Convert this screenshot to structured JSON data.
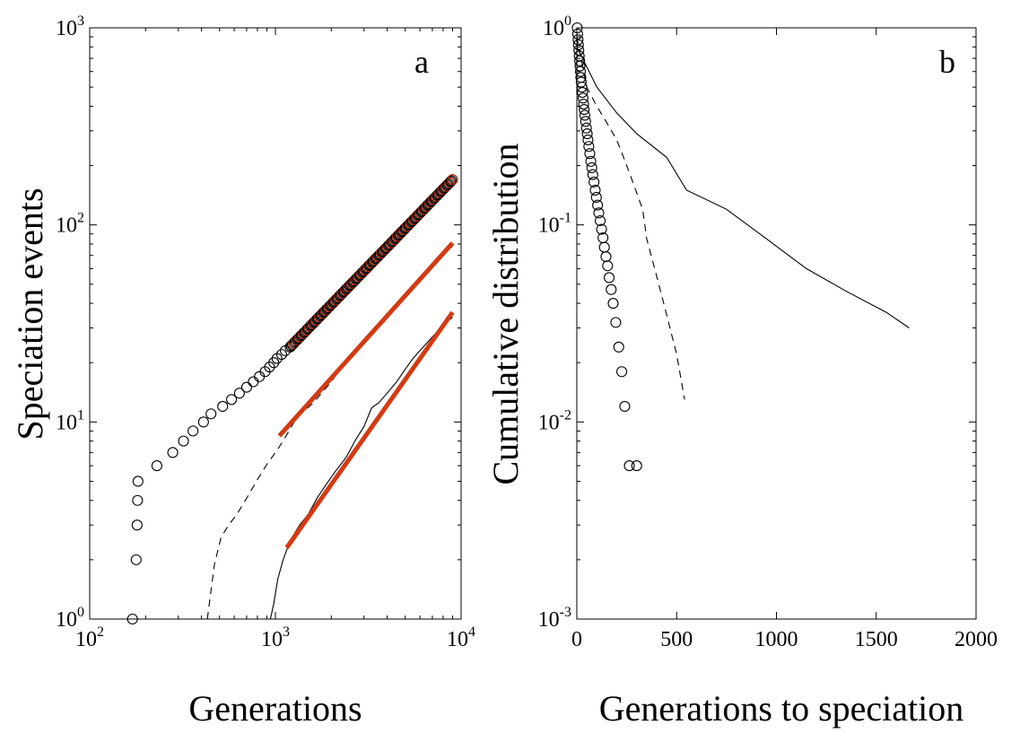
{
  "chart_data": [
    {
      "type": "scatter",
      "panel_label": "a",
      "title": "",
      "xlabel": "Generations",
      "ylabel": "Speciation events",
      "xscale": "log",
      "yscale": "log",
      "xlim": [
        100,
        10000
      ],
      "ylim": [
        1,
        1000
      ],
      "x_ticks": [
        {
          "base": "10",
          "exp": "2",
          "value": 100
        },
        {
          "base": "10",
          "exp": "3",
          "value": 1000
        },
        {
          "base": "10",
          "exp": "4",
          "value": 10000
        }
      ],
      "y_ticks": [
        {
          "base": "10",
          "exp": "0",
          "value": 1
        },
        {
          "base": "10",
          "exp": "1",
          "value": 10
        },
        {
          "base": "10",
          "exp": "2",
          "value": 100
        },
        {
          "base": "10",
          "exp": "3",
          "value": 1000
        }
      ],
      "grid": false,
      "legend": "none",
      "series": [
        {
          "style": "circles",
          "x": [
            170,
            178,
            180,
            181,
            182,
            230,
            280,
            320,
            360,
            410,
            450,
            520,
            580,
            640,
            700,
            760,
            820,
            880,
            930,
            980,
            1020,
            1080,
            1130,
            1200
          ],
          "y": [
            1,
            2,
            3,
            4,
            5,
            6,
            7,
            8,
            9,
            10,
            11,
            12,
            13,
            14,
            15,
            16,
            17,
            18,
            19,
            20,
            21,
            22,
            23,
            24
          ],
          "power_law_continuation": {
            "x_start": 1200,
            "y_start": 24,
            "x_end": 9000,
            "y_end": 170,
            "color": "#b02a10"
          }
        },
        {
          "style": "dashed",
          "x": [
            430,
            470,
            510,
            560,
            620,
            700,
            800,
            900,
            1000,
            1100,
            1300,
            1600,
            2000,
            2500,
            3000,
            3500,
            4000,
            5000,
            6000,
            7000,
            8000,
            9000
          ],
          "y": [
            1,
            1.9,
            2.6,
            3,
            3.4,
            4.1,
            5.1,
            6.1,
            7,
            8,
            10.5,
            12.5,
            16,
            21.5,
            26,
            30.5,
            35,
            45,
            54,
            62,
            71,
            78
          ]
        },
        {
          "style": "solid",
          "x": [
            940,
            980,
            1030,
            1100,
            1200,
            1350,
            1500,
            1700,
            1900,
            2100,
            2400,
            2700,
            3000,
            3300,
            3600,
            4000,
            4500,
            5000,
            5500,
            6000,
            7000,
            8000,
            9000
          ],
          "y": [
            1,
            1.2,
            1.6,
            2,
            2.5,
            3,
            3.4,
            4.2,
            4.9,
            5.6,
            6.6,
            8.1,
            9.5,
            11.8,
            12.5,
            14,
            16,
            18.5,
            21,
            23,
            27,
            31,
            34
          ]
        },
        {
          "style": "fit",
          "color": "#d43a12",
          "x": [
            1050,
            9000
          ],
          "y": [
            8.5,
            81
          ]
        },
        {
          "style": "fit",
          "color": "#d43a12",
          "x": [
            1150,
            9000
          ],
          "y": [
            2.3,
            36
          ]
        }
      ]
    },
    {
      "type": "scatter",
      "panel_label": "b",
      "title": "",
      "xlabel": "Generations to speciation",
      "ylabel": "Cumulative distribution",
      "xscale": "linear",
      "yscale": "log",
      "xlim": [
        0,
        2000
      ],
      "ylim": [
        0.001,
        1
      ],
      "x_ticks": [
        {
          "label": "0",
          "value": 0
        },
        {
          "label": "500",
          "value": 500
        },
        {
          "label": "1000",
          "value": 1000
        },
        {
          "label": "1500",
          "value": 1500
        },
        {
          "label": "2000",
          "value": 2000
        }
      ],
      "y_ticks": [
        {
          "base": "10",
          "exp": "-3",
          "value": 0.001
        },
        {
          "base": "10",
          "exp": "-2",
          "value": 0.01
        },
        {
          "base": "10",
          "exp": "-1",
          "value": 0.1
        },
        {
          "base": "10",
          "exp": "0",
          "value": 1
        }
      ],
      "grid": false,
      "legend": "none",
      "series": [
        {
          "style": "circles",
          "x": [
            2,
            4,
            6,
            8,
            10,
            12,
            14,
            16,
            18,
            20,
            22,
            25,
            28,
            31,
            34,
            37,
            40,
            44,
            48,
            52,
            56,
            60,
            65,
            70,
            75,
            80,
            86,
            92,
            98,
            104,
            110,
            117,
            124,
            131,
            138,
            146,
            154,
            162,
            172,
            182,
            195,
            210,
            225,
            240,
            263,
            300
          ],
          "y": [
            1,
            0.93,
            0.87,
            0.82,
            0.77,
            0.72,
            0.68,
            0.64,
            0.6,
            0.56,
            0.53,
            0.5,
            0.47,
            0.44,
            0.41,
            0.385,
            0.36,
            0.335,
            0.31,
            0.29,
            0.27,
            0.25,
            0.23,
            0.21,
            0.195,
            0.18,
            0.165,
            0.15,
            0.138,
            0.126,
            0.115,
            0.105,
            0.095,
            0.086,
            0.077,
            0.069,
            0.062,
            0.054,
            0.047,
            0.04,
            0.032,
            0.024,
            0.018,
            0.012,
            0.006,
            0.006
          ]
        },
        {
          "style": "dashed",
          "x": [
            0,
            50,
            100,
            150,
            200,
            250,
            300,
            330,
            350,
            400,
            450,
            500,
            540
          ],
          "y": [
            0.9,
            0.5,
            0.4,
            0.33,
            0.27,
            0.2,
            0.145,
            0.12,
            0.085,
            0.055,
            0.035,
            0.022,
            0.013
          ]
        },
        {
          "style": "solid",
          "x": [
            0,
            100,
            200,
            300,
            450,
            550,
            750,
            950,
            1150,
            1350,
            1550,
            1665
          ],
          "y": [
            0.8,
            0.5,
            0.37,
            0.29,
            0.22,
            0.15,
            0.12,
            0.085,
            0.06,
            0.046,
            0.036,
            0.03
          ]
        }
      ]
    }
  ]
}
